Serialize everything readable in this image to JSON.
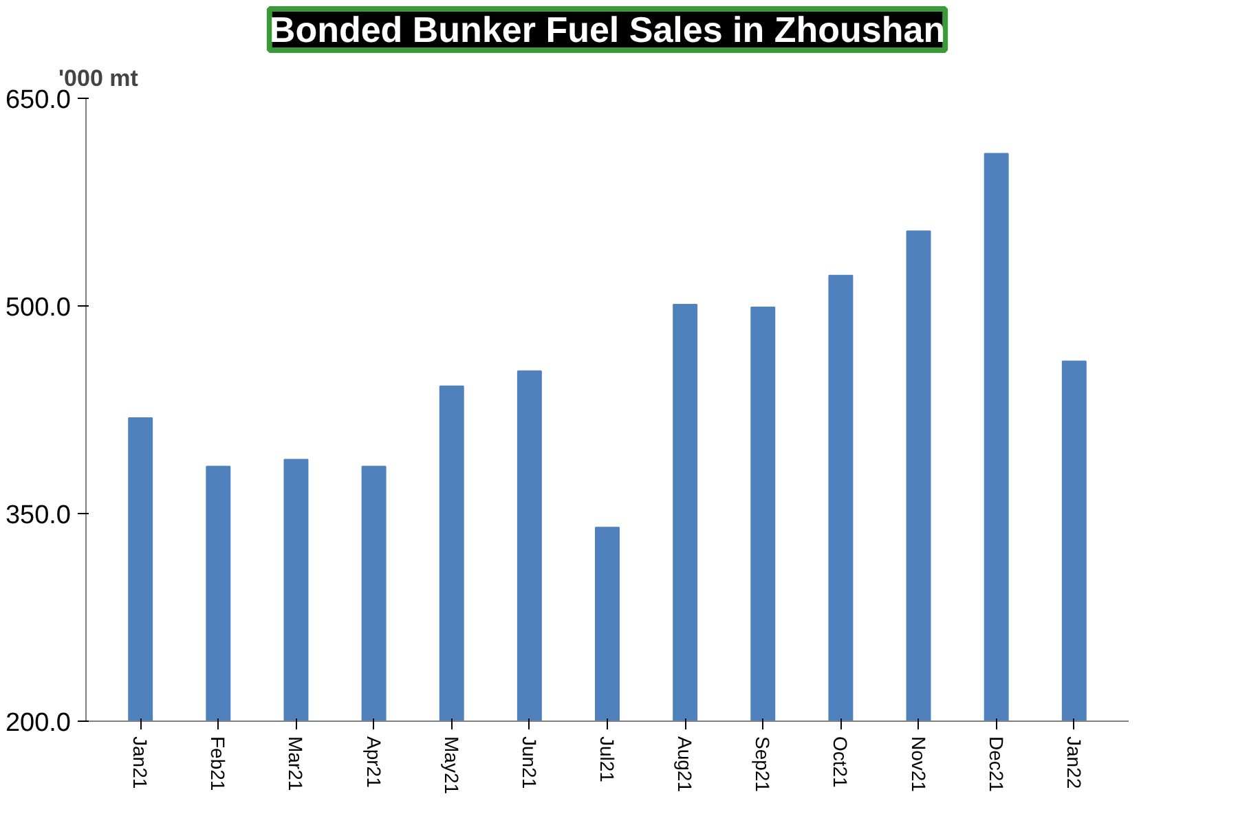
{
  "chart_data": {
    "type": "bar",
    "title": "Bonded Bunker Fuel Sales in Zhoushan",
    "ylabel": "'000 mt",
    "categories": [
      "Jan21",
      "Feb21",
      "Mar21",
      "Apr21",
      "May21",
      "Jun21",
      "Jul21",
      "Aug21",
      "Sep21",
      "Oct21",
      "Nov21",
      "Dec21",
      "Jan22"
    ],
    "values": [
      419,
      384,
      389,
      384,
      442,
      453,
      340,
      501,
      499,
      522,
      554,
      610,
      460
    ],
    "color": "#4f81bd",
    "ylim": [
      200,
      650
    ],
    "yticks": [
      {
        "value": 200,
        "label": "200.0"
      },
      {
        "value": 350,
        "label": "350.0"
      },
      {
        "value": 500,
        "label": "500.0"
      },
      {
        "value": 650,
        "label": "650.0"
      }
    ],
    "grid": false
  }
}
